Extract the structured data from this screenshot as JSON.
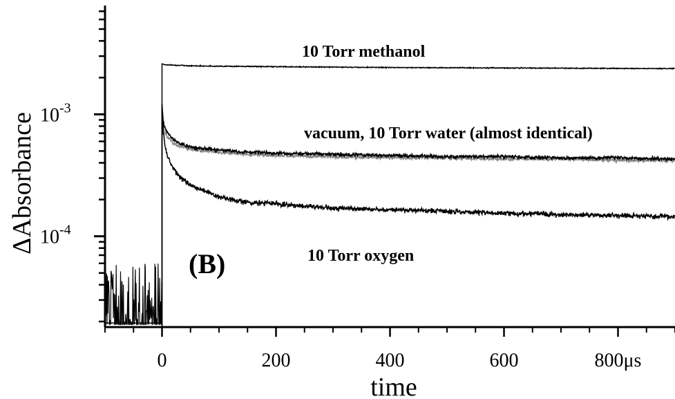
{
  "chart_data": {
    "type": "line",
    "panel_label": "(B)",
    "xlabel": "time",
    "ylabel": "ΔAbsorbance",
    "x_unit": "μs",
    "xlim": [
      -100,
      900
    ],
    "ylim": [
      1.8e-05,
      0.0078
    ],
    "y_scale": "log",
    "grid": false,
    "x_ticks": [
      0,
      200,
      400,
      600,
      800
    ],
    "x_tick_labels": [
      "0",
      "200",
      "400",
      "600",
      "800μs"
    ],
    "y_tick_labels": [
      {
        "value": 0.001,
        "base": "10",
        "exp": "-3"
      },
      {
        "value": 0.0001,
        "base": "10",
        "exp": "-4"
      }
    ],
    "annotations": [
      {
        "text": "10 Torr methanol",
        "series": "methanol"
      },
      {
        "text": "vacuum, 10 Torr water (almost identical)",
        "series": "vacuum"
      },
      {
        "text": "10 Torr oxygen",
        "series": "oxygen"
      }
    ],
    "series": [
      {
        "id": "methanol",
        "color": "#000000",
        "x": [
          -100,
          -1,
          0,
          5,
          50,
          100,
          200,
          300,
          400,
          500,
          600,
          700,
          800,
          900
        ],
        "y": [
          2e-05,
          2e-05,
          0.0026,
          0.00255,
          0.0025,
          0.00248,
          0.00246,
          0.00244,
          0.00242,
          0.00241,
          0.0024,
          0.00239,
          0.00238,
          0.00237
        ]
      },
      {
        "id": "water",
        "color": "#888888",
        "x": [
          0,
          2,
          5,
          10,
          20,
          30,
          50,
          80,
          100,
          150,
          200,
          300,
          400,
          500,
          600,
          700,
          800,
          900
        ],
        "y": [
          0.00095,
          0.0008,
          0.00072,
          0.00064,
          0.00058,
          0.00055,
          0.00052,
          0.0005,
          0.00049,
          0.00047,
          0.00046,
          0.00045,
          0.00044,
          0.00044,
          0.00043,
          0.00043,
          0.00042,
          0.00042
        ]
      },
      {
        "id": "vacuum",
        "color": "#000000",
        "x": [
          0,
          2,
          5,
          10,
          20,
          30,
          50,
          80,
          100,
          150,
          200,
          300,
          400,
          500,
          600,
          700,
          800,
          900
        ],
        "y": [
          0.0012,
          0.00088,
          0.00078,
          0.0007,
          0.00062,
          0.00058,
          0.00054,
          0.00052,
          0.00051,
          0.00049,
          0.00048,
          0.00047,
          0.00046,
          0.00045,
          0.00045,
          0.00044,
          0.00044,
          0.00043
        ]
      },
      {
        "id": "oxygen",
        "color": "#000000",
        "x": [
          0,
          2,
          5,
          10,
          20,
          30,
          50,
          80,
          100,
          150,
          200,
          300,
          400,
          500,
          600,
          700,
          800,
          900
        ],
        "y": [
          0.0012,
          0.00075,
          0.00055,
          0.00045,
          0.00036,
          0.00031,
          0.00026,
          0.00023,
          0.00021,
          0.00019,
          0.000185,
          0.00017,
          0.000165,
          0.00016,
          0.000155,
          0.00015,
          0.000148,
          0.000145
        ]
      },
      {
        "id": "baseline-noise",
        "color": "#000000",
        "x": [
          -100,
          -1
        ],
        "y": [
          3e-05,
          3e-05
        ]
      }
    ]
  }
}
